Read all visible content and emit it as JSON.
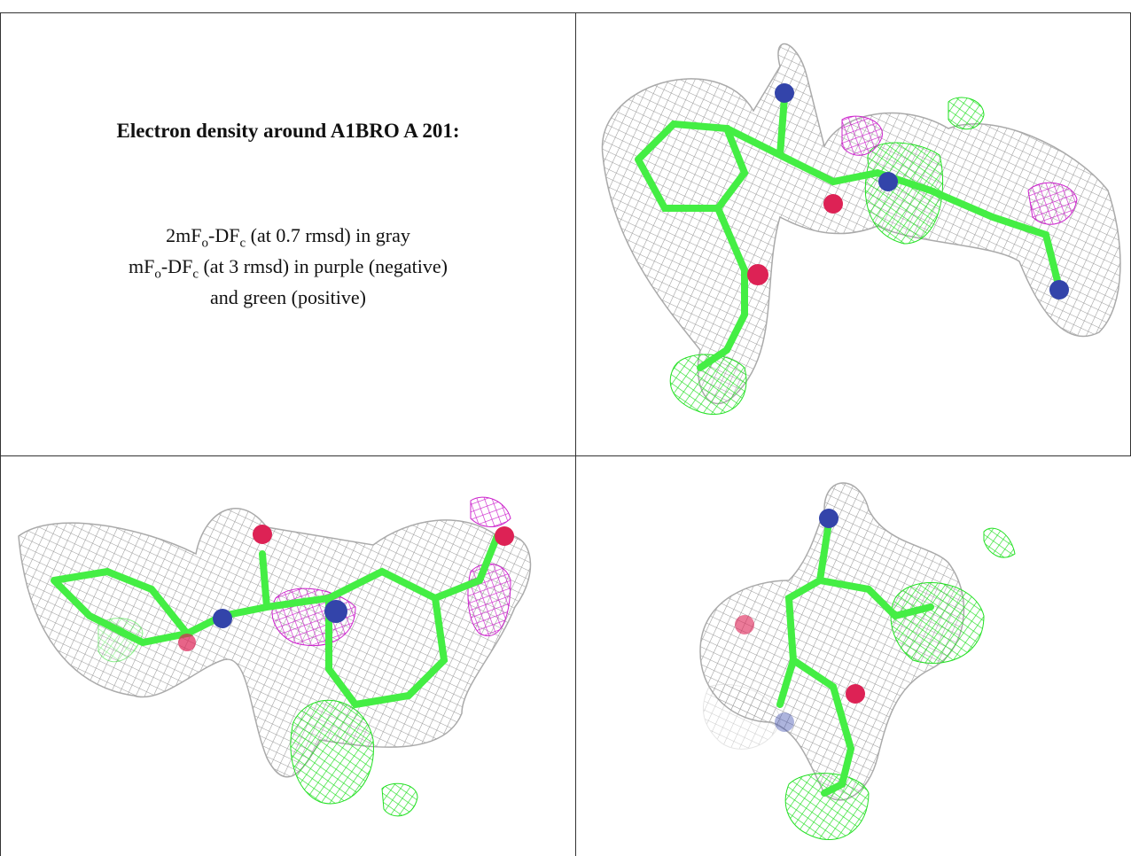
{
  "header": {
    "title": "Electron density around A1BRO A 201:"
  },
  "legend": {
    "line1": {
      "a": "2mF",
      "b": "o",
      "c": "-DF",
      "d": "c",
      "e": " (at 0.7 rmsd) in gray"
    },
    "line2": {
      "a": "mF",
      "b": "o",
      "c": "-DF",
      "d": "c",
      "e": " (at 3 rmsd) in purple (negative)"
    },
    "line3": "and green (positive)"
  }
}
